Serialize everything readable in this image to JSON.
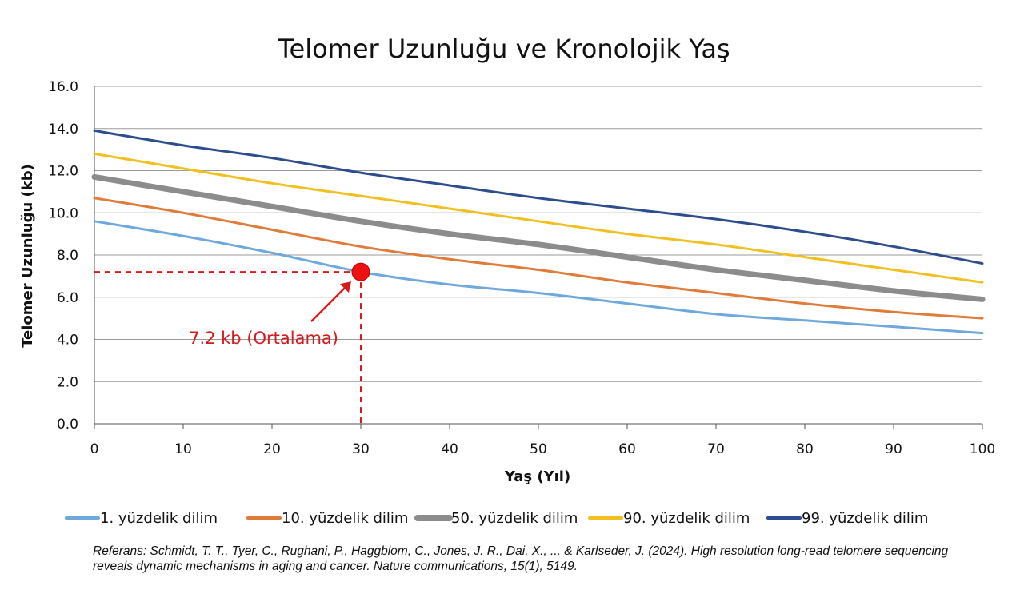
{
  "chart_data": {
    "type": "line",
    "title": "Telomer Uzunluğu ve Kronolojik Yaş",
    "xlabel": "Yaş (Yıl)",
    "ylabel": "Telomer Uzunluğu (kb)",
    "xlim": [
      0,
      100
    ],
    "ylim": [
      0,
      16
    ],
    "x_ticks": [
      "0",
      "10",
      "20",
      "30",
      "40",
      "50",
      "60",
      "70",
      "80",
      "90",
      "100"
    ],
    "y_ticks": [
      "0.0",
      "2.0",
      "4.0",
      "6.0",
      "8.0",
      "10.0",
      "12.0",
      "14.0",
      "16.0"
    ],
    "x": [
      0,
      10,
      20,
      30,
      40,
      50,
      60,
      70,
      80,
      90,
      100
    ],
    "grid": "horizontal",
    "legend_position": "bottom",
    "series": [
      {
        "name": "1. yüzdelik dilim",
        "color": "#6fa8dc",
        "values": [
          9.6,
          8.9,
          8.1,
          7.2,
          6.6,
          6.2,
          5.7,
          5.2,
          4.9,
          4.6,
          4.3
        ]
      },
      {
        "name": "10. yüzdelik dilim",
        "color": "#e07b39",
        "values": [
          10.7,
          10.0,
          9.2,
          8.4,
          7.8,
          7.3,
          6.7,
          6.2,
          5.7,
          5.3,
          5.0
        ]
      },
      {
        "name": "50. yüzdelik dilim",
        "color": "#8c8c8c",
        "values": [
          11.7,
          11.0,
          10.3,
          9.6,
          9.0,
          8.5,
          7.9,
          7.3,
          6.8,
          6.3,
          5.9
        ]
      },
      {
        "name": "90. yüzdelik dilim",
        "color": "#f2c01e",
        "values": [
          12.8,
          12.1,
          11.4,
          10.8,
          10.2,
          9.6,
          9.0,
          8.5,
          7.9,
          7.3,
          6.7
        ]
      },
      {
        "name": "99. yüzdelik dilim",
        "color": "#2e4d8f",
        "values": [
          13.9,
          13.2,
          12.6,
          11.9,
          11.3,
          10.7,
          10.2,
          9.7,
          9.1,
          8.4,
          7.6
        ]
      }
    ],
    "annotation": {
      "x": 30,
      "y": 7.2,
      "text": "7.2 kb (Ortalama)",
      "color": "#d7191c"
    }
  },
  "reference": "Referans: Schmidt, T. T., Tyer, C., Rughani, P., Haggblom, C., Jones, J. R., Dai, X., ... & Karlseder, J. (2024). High resolution long-read telomere sequencing reveals dynamic mechanisms in aging and cancer. Nature communications, 15(1), 5149."
}
